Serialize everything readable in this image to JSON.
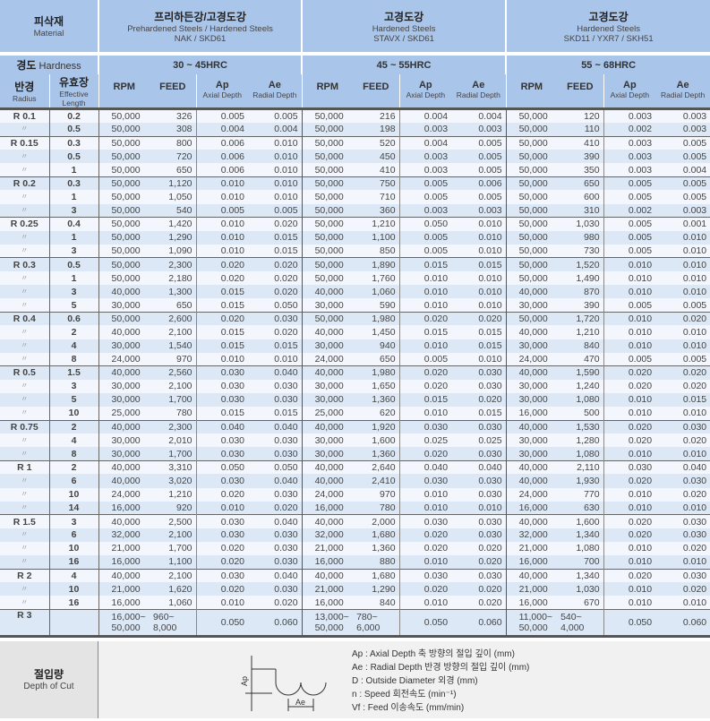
{
  "header": {
    "material_ko": "피삭재",
    "material_en": "Material",
    "hardness_label_ko": "경도",
    "hardness_label_en": "Hardness",
    "radius_ko": "반경",
    "radius_en": "Radius",
    "length_ko": "유효장",
    "length_en1": "Effective",
    "length_en2": "Length",
    "groups": [
      {
        "title_ko": "프리하든강/고경도강",
        "title_en": "Prehardened Steels / Hardened Steels",
        "grade": "NAK / SKD61",
        "hardness": "30 ~ 45HRC"
      },
      {
        "title_ko": "고경도강",
        "title_en": "Hardened Steels",
        "grade": "STAVX / SKD61",
        "hardness": "45 ~ 55HRC"
      },
      {
        "title_ko": "고경도강",
        "title_en": "Hardened Steels",
        "grade": "SKD11 / YXR7 / SKH51",
        "hardness": "55 ~ 68HRC"
      }
    ],
    "cols": {
      "rpm": "RPM",
      "feed": "FEED",
      "ap": "Ap",
      "ap_sub": "Axial Depth",
      "ae": "Ae",
      "ae_sub": "Radial Depth"
    }
  },
  "ditto": "〃",
  "rows": [
    [
      "R 0.1",
      "0.2",
      "50,000",
      "326",
      "0.005",
      "0.005",
      "50,000",
      "216",
      "0.004",
      "0.004",
      "50,000",
      "120",
      "0.003",
      "0.003"
    ],
    [
      "",
      "0.5",
      "50,000",
      "308",
      "0.004",
      "0.004",
      "50,000",
      "198",
      "0.003",
      "0.003",
      "50,000",
      "110",
      "0.002",
      "0.003"
    ],
    [
      "R 0.15",
      "0.3",
      "50,000",
      "800",
      "0.006",
      "0.010",
      "50,000",
      "520",
      "0.004",
      "0.005",
      "50,000",
      "410",
      "0.003",
      "0.005"
    ],
    [
      "",
      "0.5",
      "50,000",
      "720",
      "0.006",
      "0.010",
      "50,000",
      "450",
      "0.003",
      "0.005",
      "50,000",
      "390",
      "0.003",
      "0.005"
    ],
    [
      "",
      "1",
      "50,000",
      "650",
      "0.006",
      "0.010",
      "50,000",
      "410",
      "0.003",
      "0.005",
      "50,000",
      "350",
      "0.003",
      "0.004"
    ],
    [
      "R 0.2",
      "0.3",
      "50,000",
      "1,120",
      "0.010",
      "0.010",
      "50,000",
      "750",
      "0.005",
      "0.006",
      "50,000",
      "650",
      "0.005",
      "0.005"
    ],
    [
      "",
      "1",
      "50,000",
      "1,050",
      "0.010",
      "0.010",
      "50,000",
      "710",
      "0.005",
      "0.005",
      "50,000",
      "600",
      "0.005",
      "0.005"
    ],
    [
      "",
      "3",
      "50,000",
      "540",
      "0.005",
      "0.005",
      "50,000",
      "360",
      "0.003",
      "0.003",
      "50,000",
      "310",
      "0.002",
      "0.003"
    ],
    [
      "R 0.25",
      "0.4",
      "50,000",
      "1,420",
      "0.010",
      "0.020",
      "50,000",
      "1,210",
      "0.050",
      "0.010",
      "50,000",
      "1,030",
      "0.005",
      "0.001"
    ],
    [
      "",
      "1",
      "50,000",
      "1,290",
      "0.010",
      "0.015",
      "50,000",
      "1,100",
      "0.005",
      "0.010",
      "50,000",
      "980",
      "0.005",
      "0.010"
    ],
    [
      "",
      "3",
      "50,000",
      "1,090",
      "0.010",
      "0.015",
      "50,000",
      "850",
      "0.005",
      "0.010",
      "50,000",
      "730",
      "0.005",
      "0.010"
    ],
    [
      "R 0.3",
      "0.5",
      "50,000",
      "2,300",
      "0.020",
      "0.020",
      "50,000",
      "1,890",
      "0.015",
      "0.015",
      "50,000",
      "1,520",
      "0.010",
      "0.010"
    ],
    [
      "",
      "1",
      "50,000",
      "2,180",
      "0.020",
      "0.020",
      "50,000",
      "1,760",
      "0.010",
      "0.010",
      "50,000",
      "1,490",
      "0.010",
      "0.010"
    ],
    [
      "",
      "3",
      "40,000",
      "1,300",
      "0.015",
      "0.020",
      "40,000",
      "1,060",
      "0.010",
      "0.010",
      "40,000",
      "870",
      "0.010",
      "0.010"
    ],
    [
      "",
      "5",
      "30,000",
      "650",
      "0.015",
      "0.050",
      "30,000",
      "590",
      "0.010",
      "0.010",
      "30,000",
      "390",
      "0.005",
      "0.005"
    ],
    [
      "R 0.4",
      "0.6",
      "50,000",
      "2,600",
      "0.020",
      "0.030",
      "50,000",
      "1,980",
      "0.020",
      "0.020",
      "50,000",
      "1,720",
      "0.010",
      "0.020"
    ],
    [
      "",
      "2",
      "40,000",
      "2,100",
      "0.015",
      "0.020",
      "40,000",
      "1,450",
      "0.015",
      "0.015",
      "40,000",
      "1,210",
      "0.010",
      "0.010"
    ],
    [
      "",
      "4",
      "30,000",
      "1,540",
      "0.015",
      "0.015",
      "30,000",
      "940",
      "0.010",
      "0.015",
      "30,000",
      "840",
      "0.010",
      "0.010"
    ],
    [
      "",
      "8",
      "24,000",
      "970",
      "0.010",
      "0.010",
      "24,000",
      "650",
      "0.005",
      "0.010",
      "24,000",
      "470",
      "0.005",
      "0.005"
    ],
    [
      "R 0.5",
      "1.5",
      "40,000",
      "2,560",
      "0.030",
      "0.040",
      "40,000",
      "1,980",
      "0.020",
      "0.030",
      "40,000",
      "1,590",
      "0.020",
      "0.020"
    ],
    [
      "",
      "3",
      "30,000",
      "2,100",
      "0.030",
      "0.030",
      "30,000",
      "1,650",
      "0.020",
      "0.030",
      "30,000",
      "1,240",
      "0.020",
      "0.020"
    ],
    [
      "",
      "5",
      "30,000",
      "1,700",
      "0.030",
      "0.030",
      "30,000",
      "1,360",
      "0.015",
      "0.020",
      "30,000",
      "1,080",
      "0.010",
      "0.015"
    ],
    [
      "",
      "10",
      "25,000",
      "780",
      "0.015",
      "0.015",
      "25,000",
      "620",
      "0.010",
      "0.015",
      "16,000",
      "500",
      "0.010",
      "0.010"
    ],
    [
      "R 0.75",
      "2",
      "40,000",
      "2,300",
      "0.040",
      "0.040",
      "40,000",
      "1,920",
      "0.030",
      "0.030",
      "40,000",
      "1,530",
      "0.020",
      "0.030"
    ],
    [
      "",
      "4",
      "30,000",
      "2,010",
      "0.030",
      "0.030",
      "30,000",
      "1,600",
      "0.025",
      "0.025",
      "30,000",
      "1,280",
      "0.020",
      "0.020"
    ],
    [
      "",
      "8",
      "30,000",
      "1,700",
      "0.030",
      "0.030",
      "30,000",
      "1,360",
      "0.020",
      "0.030",
      "30,000",
      "1,080",
      "0.010",
      "0.010"
    ],
    [
      "R 1",
      "2",
      "40,000",
      "3,310",
      "0.050",
      "0.050",
      "40,000",
      "2,640",
      "0.040",
      "0.040",
      "40,000",
      "2,110",
      "0.030",
      "0.040"
    ],
    [
      "",
      "6",
      "40,000",
      "3,020",
      "0.030",
      "0.040",
      "40,000",
      "2,410",
      "0.030",
      "0.030",
      "40,000",
      "1,930",
      "0.020",
      "0.030"
    ],
    [
      "",
      "10",
      "24,000",
      "1,210",
      "0.020",
      "0.030",
      "24,000",
      "970",
      "0.010",
      "0.030",
      "24,000",
      "770",
      "0.010",
      "0.020"
    ],
    [
      "",
      "14",
      "16,000",
      "920",
      "0.010",
      "0.020",
      "16,000",
      "780",
      "0.010",
      "0.010",
      "16,000",
      "630",
      "0.010",
      "0.010"
    ],
    [
      "R 1.5",
      "3",
      "40,000",
      "2,500",
      "0.030",
      "0.040",
      "40,000",
      "2,000",
      "0.030",
      "0.030",
      "40,000",
      "1,600",
      "0.020",
      "0.030"
    ],
    [
      "",
      "6",
      "32,000",
      "2,100",
      "0.030",
      "0.030",
      "32,000",
      "1,680",
      "0.020",
      "0.030",
      "32,000",
      "1,340",
      "0.020",
      "0.030"
    ],
    [
      "",
      "10",
      "21,000",
      "1,700",
      "0.020",
      "0.030",
      "21,000",
      "1,360",
      "0.020",
      "0.020",
      "21,000",
      "1,080",
      "0.010",
      "0.020"
    ],
    [
      "",
      "16",
      "16,000",
      "1,100",
      "0.020",
      "0.030",
      "16,000",
      "880",
      "0.010",
      "0.020",
      "16,000",
      "700",
      "0.010",
      "0.010"
    ],
    [
      "R 2",
      "4",
      "40,000",
      "2,100",
      "0.030",
      "0.040",
      "40,000",
      "1,680",
      "0.030",
      "0.030",
      "40,000",
      "1,340",
      "0.020",
      "0.030"
    ],
    [
      "",
      "10",
      "21,000",
      "1,620",
      "0.020",
      "0.030",
      "21,000",
      "1,290",
      "0.020",
      "0.020",
      "21,000",
      "1,030",
      "0.010",
      "0.020"
    ],
    [
      "",
      "16",
      "16,000",
      "1,060",
      "0.010",
      "0.020",
      "16,000",
      "840",
      "0.010",
      "0.020",
      "16,000",
      "670",
      "0.010",
      "0.010"
    ]
  ],
  "r3": {
    "radius": "R 3",
    "length": "",
    "groups": [
      {
        "rpm1": "16,000~",
        "rpm2": "50,000",
        "feed1": "960~",
        "feed2": "8,000",
        "ap": "0.050",
        "ae": "0.060"
      },
      {
        "rpm1": "13,000~",
        "rpm2": "50,000",
        "feed1": "780~",
        "feed2": "6,000",
        "ap": "0.050",
        "ae": "0.060"
      },
      {
        "rpm1": "11,000~",
        "rpm2": "50,000",
        "feed1": "540~",
        "feed2": "4,000",
        "ap": "0.050",
        "ae": "0.060"
      }
    ]
  },
  "footer": {
    "title_ko": "절입량",
    "title_en": "Depth of Cut",
    "diagram_ap": "Ap",
    "diagram_ae": "Ae",
    "legend": [
      "Ap : Axial Depth   축 방향의 절입 깊이 (mm)",
      "Ae : Radial Depth   반경 방향의 절입 깊이 (mm)",
      "D : Outside Diameter   외경 (mm)",
      "n : Speed   회전속도 (min⁻¹)",
      "Vf : Feed   이송속도 (mm/min)"
    ]
  }
}
